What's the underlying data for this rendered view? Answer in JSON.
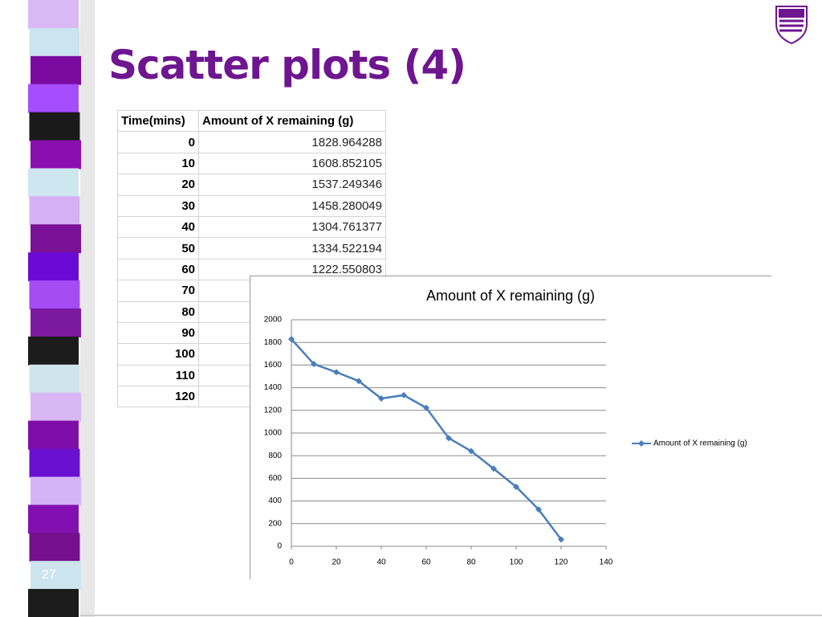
{
  "slide": {
    "title": "Scatter plots (4)",
    "page_number": "27"
  },
  "table": {
    "header": [
      "Time(mins)",
      "Amount of X remaining (g)"
    ],
    "rows": [
      [
        "0",
        "1828.964288"
      ],
      [
        "10",
        "1608.852105"
      ],
      [
        "20",
        "1537.249346"
      ],
      [
        "30",
        "1458.280049"
      ],
      [
        "40",
        "1304.761377"
      ],
      [
        "50",
        "1334.522194"
      ],
      [
        "60",
        "1222.550803"
      ],
      [
        "70"
      ],
      [
        "80"
      ],
      [
        "90"
      ],
      [
        "100"
      ],
      [
        "110"
      ],
      [
        "120"
      ]
    ]
  },
  "chart_data": {
    "type": "line",
    "title": "Amount of X remaining (g)",
    "x": [
      0,
      10,
      20,
      30,
      40,
      50,
      60,
      70,
      80,
      90,
      100,
      110,
      120
    ],
    "series": [
      {
        "name": "Amount of X remaining (g)",
        "color": "#4a7ebb",
        "values": [
          1828.964288,
          1608.852105,
          1537.249346,
          1458.280049,
          1304.761377,
          1334.522194,
          1222.550803,
          955,
          840,
          685,
          525,
          325,
          60
        ]
      }
    ],
    "xlim": [
      0,
      140
    ],
    "ylim": [
      0,
      2000
    ],
    "xticks": [
      0,
      20,
      40,
      60,
      80,
      100,
      120,
      140
    ],
    "yticks": [
      0,
      200,
      400,
      600,
      800,
      1000,
      1200,
      1400,
      1600,
      1800,
      2000
    ],
    "grid": true,
    "legend": "right"
  }
}
